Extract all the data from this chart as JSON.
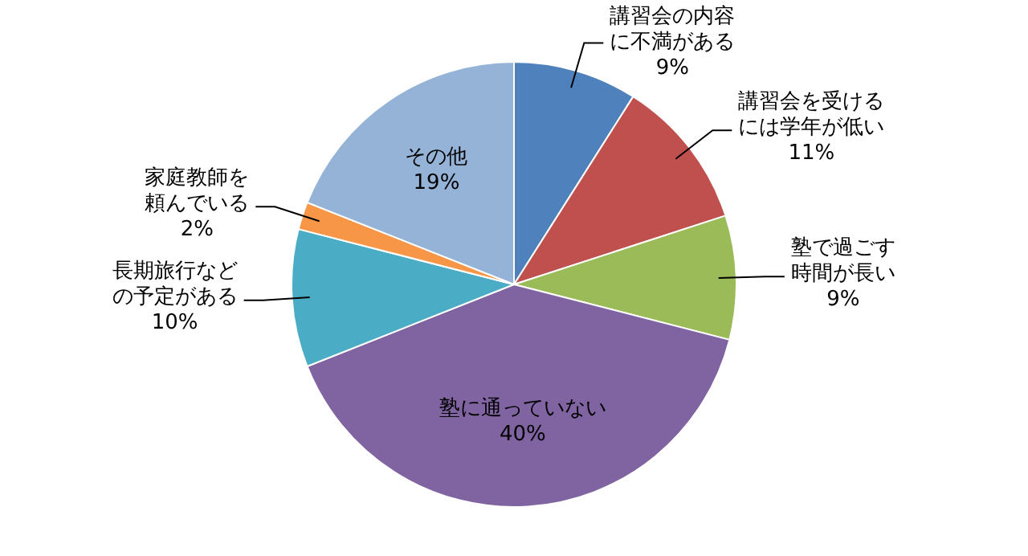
{
  "chart_data": {
    "type": "pie",
    "categories": [
      "講習会の内容に不満がある",
      "講習会を受けるには学年が低い",
      "塾で過ごす時間が長い",
      "塾に通っていない",
      "長期旅行などの予定がある",
      "家庭教師を頼んでいる",
      "その他"
    ],
    "values": [
      9,
      11,
      9,
      40,
      10,
      2,
      19
    ],
    "value_labels": [
      "9%",
      "11%",
      "9%",
      "40%",
      "10%",
      "2%",
      "19%"
    ],
    "colors": [
      "#4f81bd",
      "#c0504d",
      "#9bbb59",
      "#8064a2",
      "#4bacc6",
      "#f79646",
      "#95b3d7"
    ],
    "legend": false
  }
}
